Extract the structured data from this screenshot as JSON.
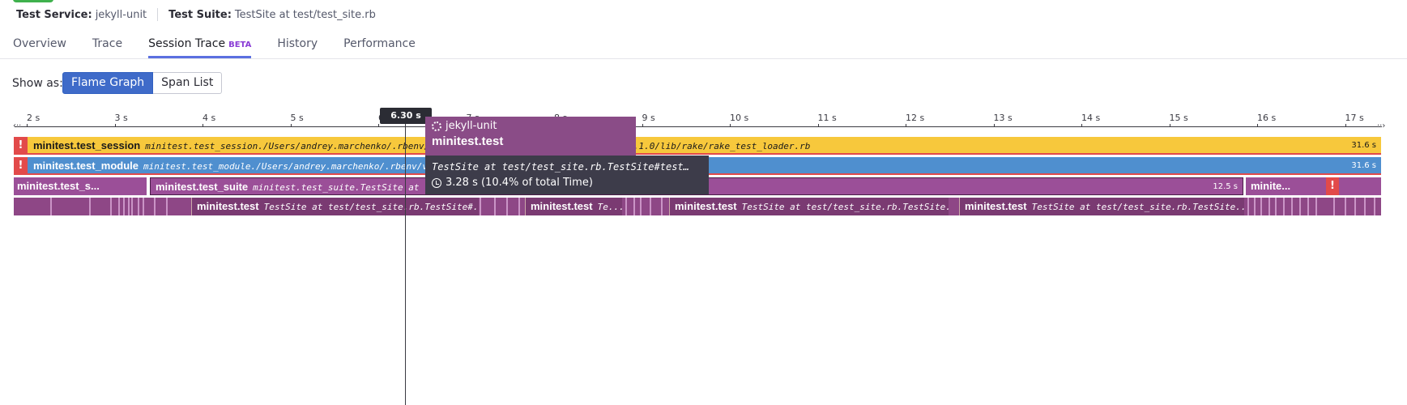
{
  "header": {
    "service_label": "Test Service:",
    "service_value": "jekyll-unit",
    "suite_label": "Test Suite:",
    "suite_value": "TestSite at test/test_site.rb",
    "status_color": "#3fb14d"
  },
  "tabs": [
    {
      "label": "Overview"
    },
    {
      "label": "Trace"
    },
    {
      "label": "Session Trace",
      "badge": "BETA",
      "active": true
    },
    {
      "label": "History"
    },
    {
      "label": "Performance"
    }
  ],
  "view": {
    "label": "Show as:",
    "options": [
      "Flame Graph",
      "Span List"
    ],
    "selected": "Flame Graph",
    "accent": "#3f6bc9"
  },
  "timeline": {
    "ticks": [
      "2 s",
      "3 s",
      "4 s",
      "5 s",
      "6 s",
      "7 s",
      "8 s",
      "9 s",
      "10 s",
      "11 s",
      "12 s",
      "13 s",
      "14 s",
      "15 s",
      "16 s",
      "17 s"
    ],
    "cursor": "6.30 s",
    "left_cap": "‹··",
    "right_cap": "··›"
  },
  "spans": {
    "session": {
      "name": "minitest.test_session",
      "resource": "minitest.test_session./Users/andrey.marchenko/.rbenv/versions/.../lib/ruby/gems/.../rake-13.1.0/lib/rake/rake_test_loader.rb",
      "duration": "31.6 s",
      "error": "!",
      "color": "#f7c83c"
    },
    "module": {
      "name": "minitest.test_module",
      "resource": "minitest.test_module./Users/andrey.marchenko/.rbenv/versions/.../rake/rake_test_loader.rb",
      "duration": "31.6 s",
      "error": "!",
      "color": "#4f8fcf"
    },
    "suite_a": {
      "name": "minitest.test_s..."
    },
    "suite_b": {
      "name": "minitest.test_suite",
      "resource": "minitest.test_suite.TestSite at test/test_site.rb",
      "duration": "12.5 s"
    },
    "suite_c": {
      "name": "minite..."
    },
    "suite_error": "!",
    "tests": [
      {
        "name": "minitest.test",
        "resource": "TestSite at test/test_site.rb.TestSite#..."
      },
      {
        "name": "minitest.test",
        "resource": "Te..."
      },
      {
        "name": "minitest.test",
        "resource": "TestSite at test/test_site.rb.TestSite..."
      },
      {
        "name": "minitest.test",
        "resource": "TestSite at test/test_site.rb.TestSite..."
      }
    ],
    "suite_color": "#9b4f98"
  },
  "tooltip": {
    "service": "jekyll-unit",
    "name": "minitest.test",
    "resource": "TestSite at test/test_site.rb.TestSite#test…",
    "time": "3.28 s (10.4% of total Time)",
    "service_icon": "gears-icon",
    "time_icon": "clock-icon"
  }
}
